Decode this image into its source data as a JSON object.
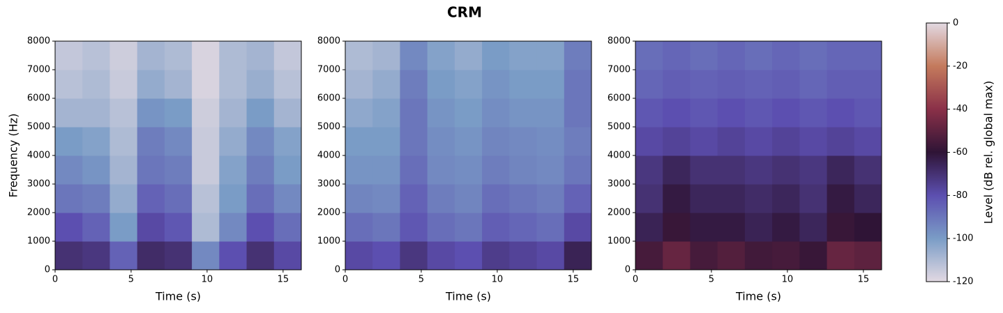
{
  "figure": {
    "title": "CRM",
    "colorbar": {
      "label": "Level (dB rel. global max)",
      "lim": [
        -120,
        0
      ],
      "ticks": [
        0,
        -20,
        -40,
        -60,
        -80,
        -100,
        -120
      ],
      "colormap": [
        "#e2d9e2",
        "#7a9cc6",
        "#5c4fb0",
        "#2f1436",
        "#8a3048",
        "#c47a5c",
        "#e2d9e2"
      ]
    }
  },
  "chart_data": [
    {
      "type": "heatmap",
      "xlabel": "Time (s)",
      "ylabel": "Frequency (Hz)",
      "xlim": [
        0,
        16.2
      ],
      "ylim": [
        0,
        8000
      ],
      "xticks": [
        0,
        5,
        10,
        15
      ],
      "yticks": [
        0,
        1000,
        2000,
        3000,
        4000,
        5000,
        6000,
        7000,
        8000
      ],
      "x_edges": [
        0,
        1.8,
        3.6,
        5.4,
        7.2,
        9,
        10.8,
        12.6,
        14.4,
        16.2
      ],
      "y_edges": [
        0,
        1000,
        2000,
        3000,
        4000,
        5000,
        6000,
        7000,
        8000
      ],
      "z": [
        [
          -70,
          -72,
          -85,
          -68,
          -70,
          -95,
          -80,
          -70,
          -78
        ],
        [
          -80,
          -85,
          -100,
          -78,
          -82,
          -110,
          -95,
          -80,
          -88
        ],
        [
          -90,
          -92,
          -105,
          -85,
          -88,
          -112,
          -100,
          -88,
          -95
        ],
        [
          -95,
          -98,
          -108,
          -90,
          -92,
          -115,
          -102,
          -92,
          -100
        ],
        [
          -100,
          -102,
          -110,
          -92,
          -95,
          -115,
          -105,
          -95,
          -102
        ],
        [
          -108,
          -108,
          -112,
          -98,
          -100,
          -116,
          -108,
          -100,
          -108
        ],
        [
          -112,
          -110,
          -115,
          -105,
          -108,
          -118,
          -110,
          -106,
          -112
        ],
        [
          -114,
          -112,
          -116,
          -108,
          -110,
          -118,
          -110,
          -108,
          -114
        ]
      ]
    },
    {
      "type": "heatmap",
      "xlabel": "Time (s)",
      "xlim": [
        0,
        16.2
      ],
      "ylim": [
        0,
        8000
      ],
      "xticks": [
        0,
        5,
        10,
        15
      ],
      "yticks": [
        0,
        1000,
        2000,
        3000,
        4000,
        5000,
        6000,
        7000,
        8000
      ],
      "x_edges": [
        0,
        1.8,
        3.6,
        5.4,
        7.2,
        9,
        10.8,
        12.6,
        14.4,
        16.2
      ],
      "y_edges": [
        0,
        1000,
        2000,
        3000,
        4000,
        5000,
        6000,
        7000,
        8000
      ],
      "z": [
        [
          -78,
          -80,
          -72,
          -78,
          -80,
          -74,
          -76,
          -78,
          -65
        ],
        [
          -88,
          -90,
          -82,
          -88,
          -90,
          -84,
          -86,
          -88,
          -78
        ],
        [
          -94,
          -95,
          -85,
          -92,
          -94,
          -88,
          -90,
          -92,
          -85
        ],
        [
          -98,
          -98,
          -88,
          -95,
          -96,
          -92,
          -94,
          -95,
          -90
        ],
        [
          -100,
          -100,
          -90,
          -96,
          -98,
          -94,
          -95,
          -96,
          -92
        ],
        [
          -104,
          -102,
          -90,
          -98,
          -100,
          -96,
          -98,
          -98,
          -90
        ],
        [
          -108,
          -105,
          -92,
          -100,
          -102,
          -98,
          -100,
          -100,
          -90
        ],
        [
          -110,
          -108,
          -95,
          -102,
          -105,
          -100,
          -102,
          -102,
          -92
        ]
      ]
    },
    {
      "type": "heatmap",
      "xlabel": "Time (s)",
      "xlim": [
        0,
        16.2
      ],
      "ylim": [
        0,
        8000
      ],
      "xticks": [
        0,
        5,
        10,
        15
      ],
      "yticks": [
        0,
        1000,
        2000,
        3000,
        4000,
        5000,
        6000,
        7000,
        8000
      ],
      "x_edges": [
        0,
        1.8,
        3.6,
        5.4,
        7.2,
        9,
        10.8,
        12.6,
        14.4,
        16.2
      ],
      "y_edges": [
        0,
        1000,
        2000,
        3000,
        4000,
        5000,
        6000,
        7000,
        8000
      ],
      "z": [
        [
          -55,
          -48,
          -55,
          -52,
          -56,
          -55,
          -58,
          -48,
          -50
        ],
        [
          -65,
          -58,
          -62,
          -62,
          -65,
          -62,
          -66,
          -58,
          -60
        ],
        [
          -70,
          -62,
          -66,
          -66,
          -68,
          -66,
          -70,
          -62,
          -66
        ],
        [
          -72,
          -66,
          -70,
          -70,
          -72,
          -70,
          -72,
          -66,
          -70
        ],
        [
          -78,
          -76,
          -78,
          -76,
          -78,
          -76,
          -78,
          -76,
          -78
        ],
        [
          -82,
          -80,
          -82,
          -80,
          -82,
          -80,
          -82,
          -80,
          -82
        ],
        [
          -86,
          -84,
          -85,
          -84,
          -85,
          -84,
          -86,
          -84,
          -84
        ],
        [
          -88,
          -86,
          -88,
          -86,
          -88,
          -86,
          -88,
          -86,
          -86
        ]
      ]
    }
  ]
}
